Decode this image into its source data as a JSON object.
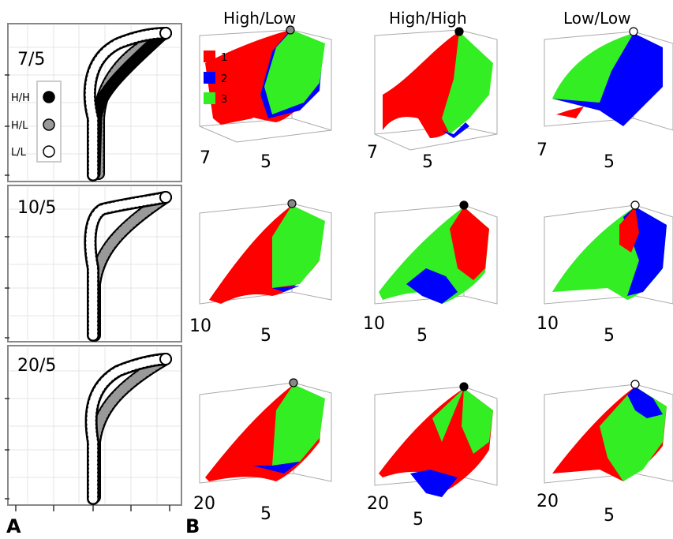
{
  "panel_a": {
    "letter": "A",
    "subpanels": [
      {
        "title": "7/5"
      },
      {
        "title": "10/5"
      },
      {
        "title": "20/5"
      }
    ],
    "legend": [
      {
        "label": "H/H",
        "fill": "#000000"
      },
      {
        "label": "H/L",
        "fill": "#999999"
      },
      {
        "label": "L/L",
        "fill": "#ffffff"
      }
    ]
  },
  "panel_b": {
    "letter": "B",
    "columns": [
      {
        "title": "High/Low",
        "marker_fill": "#888888"
      },
      {
        "title": "High/High",
        "marker_fill": "#000000"
      },
      {
        "title": "Low/Low",
        "marker_fill": "#ffffff"
      }
    ],
    "legend": [
      {
        "label": "1",
        "color": "#ff0000"
      },
      {
        "label": "2",
        "color": "#0000ff"
      },
      {
        "label": "3",
        "color": "#33ee22"
      }
    ],
    "axis_labels": [
      [
        "7",
        "5",
        "7",
        "7",
        "5",
        "5"
      ],
      [
        "10",
        "5",
        "10",
        "10",
        "5",
        "5"
      ],
      [
        "20",
        "5",
        "20",
        "20",
        "5",
        "5"
      ]
    ]
  },
  "colors": {
    "red": "#ff0000",
    "blue": "#0000ff",
    "green": "#33ee22",
    "grey": "#999999"
  }
}
